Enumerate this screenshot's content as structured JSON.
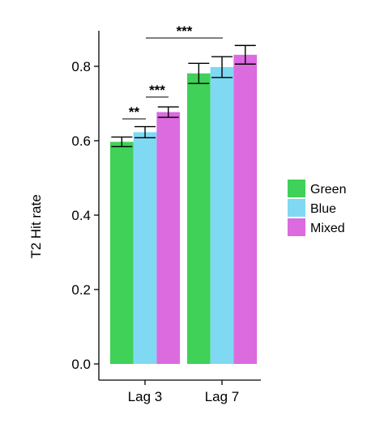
{
  "chart_data": {
    "type": "bar",
    "ylabel": "T2 Hit rate",
    "ylim": [
      0,
      0.9
    ],
    "yticks": [
      "0.0",
      "0.2",
      "0.4",
      "0.6",
      "0.8"
    ],
    "categories": [
      "Lag 3",
      "Lag 7"
    ],
    "series": [
      {
        "name": "Green",
        "color": "#3fd158",
        "values": [
          0.597,
          0.781
        ],
        "err": [
          0.013,
          0.027
        ]
      },
      {
        "name": "Blue",
        "color": "#7fd9f2",
        "values": [
          0.623,
          0.798
        ],
        "err": [
          0.015,
          0.028
        ]
      },
      {
        "name": "Mixed",
        "color": "#dc6be0",
        "values": [
          0.677,
          0.831
        ],
        "err": [
          0.014,
          0.025
        ]
      }
    ],
    "significance": [
      {
        "label": "**"
      },
      {
        "label": "***"
      },
      {
        "label": "***"
      }
    ],
    "legend_position": "right",
    "grid": false
  }
}
